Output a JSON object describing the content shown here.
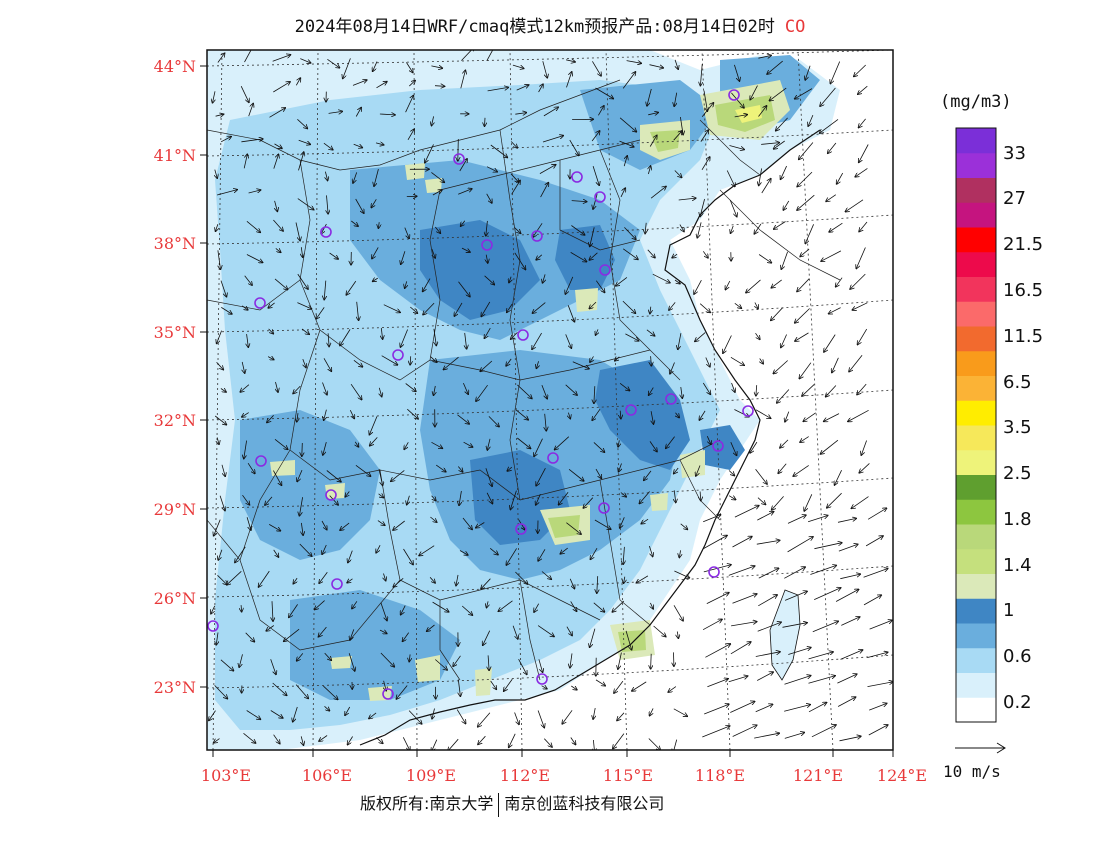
{
  "title": {
    "text": "2024年08月14日WRF/cmaq模式12km预报产品:08月14日02时",
    "species": "CO"
  },
  "map": {
    "lat_labels": [
      "44°N",
      "41°N",
      "38°N",
      "35°N",
      "32°N",
      "29°N",
      "26°N",
      "23°N"
    ],
    "lon_labels": [
      "103°E",
      "106°E",
      "109°E",
      "112°E",
      "115°E",
      "118°E",
      "121°E",
      "124°E"
    ],
    "colors": {
      "background_sea": "#ffffff",
      "light_blue": "#d9f0fb",
      "mid_blue": "#a8daf4",
      "blue": "#6aaedd",
      "dark_blue": "#3f86c4",
      "pale_green": "#dbe9b9",
      "green": "#b9d87a",
      "yellow": "#eef37a",
      "station_marker": "#8a2be2",
      "label_red": "#e8393a"
    }
  },
  "legend": {
    "unit": "(mg/m3)",
    "labels": [
      "33",
      "27",
      "21.5",
      "16.5",
      "11.5",
      "6.5",
      "3.5",
      "2.5",
      "1.8",
      "1.4",
      "1",
      "0.6",
      "0.2"
    ],
    "colors": [
      "#ffffff",
      "#d9f0fb",
      "#a8daf4",
      "#6aaedd",
      "#3f86c4",
      "#dbe9b9",
      "#c5e07d",
      "#b9d87a",
      "#8dc63f",
      "#5f9f2f",
      "#eef37a",
      "#f6e85a",
      "#ffed00",
      "#fbb336",
      "#f99b1b",
      "#f26a2e",
      "#fb6a6a",
      "#f2345c",
      "#ed0a4b",
      "#ff0000",
      "#c5147f",
      "#b03060",
      "#9b30d9",
      "#7b2fd8"
    ]
  },
  "wind_reference": {
    "label": "10 m/s"
  },
  "footer": {
    "left": "版权所有:南京大学",
    "right": "南京创蓝科技有限公司"
  }
}
